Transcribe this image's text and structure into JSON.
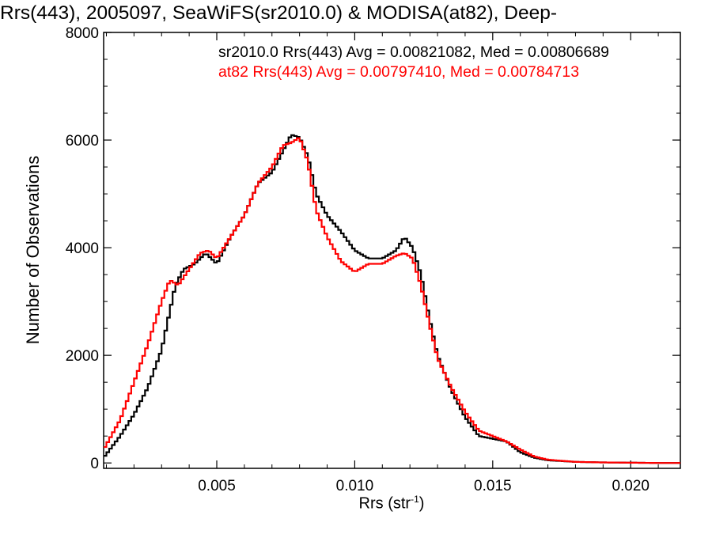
{
  "title": "Rrs(443), 2005097, SeaWiFS(sr2010.0) & MODISA(at82), Deep-",
  "chart_data": {
    "type": "line",
    "step": true,
    "xlabel_main": "Rrs (str",
    "xlabel_sup": "-1",
    "xlabel_close": ")",
    "ylabel": "Number of Observations",
    "xlim": [
      0.0009,
      0.0218
    ],
    "ylim": [
      -100,
      8000
    ],
    "xticks": [
      0.005,
      0.01,
      0.015,
      0.02
    ],
    "xtick_labels": [
      "0.005",
      "0.010",
      "0.015",
      "0.020"
    ],
    "yticks": [
      0,
      2000,
      4000,
      6000,
      8000
    ],
    "ytick_labels": [
      "0",
      "2000",
      "4000",
      "6000",
      "8000"
    ],
    "grid": false,
    "legend_position": "top-right",
    "series": [
      {
        "name": "sr2010.0 Rrs(443) Avg = 0.00821082, Med = 0.00806689",
        "color": "#000000",
        "x": [
          0.0009,
          0.0015,
          0.002,
          0.0025,
          0.003,
          0.0035,
          0.0038,
          0.0042,
          0.0046,
          0.005,
          0.0055,
          0.006,
          0.0065,
          0.007,
          0.0074,
          0.0077,
          0.008,
          0.0083,
          0.0086,
          0.009,
          0.0095,
          0.01,
          0.0105,
          0.011,
          0.0115,
          0.0118,
          0.0121,
          0.0124,
          0.0127,
          0.013,
          0.0135,
          0.014,
          0.0145,
          0.015,
          0.0155,
          0.016,
          0.0165,
          0.017,
          0.018,
          0.019,
          0.02,
          0.021,
          0.0218
        ],
        "y": [
          100,
          500,
          900,
          1400,
          2100,
          3300,
          3600,
          3700,
          3900,
          3700,
          4200,
          4600,
          5200,
          5400,
          5800,
          6100,
          6050,
          5700,
          5000,
          4600,
          4300,
          3950,
          3800,
          3800,
          3950,
          4200,
          4000,
          3500,
          2700,
          2000,
          1350,
          850,
          500,
          450,
          400,
          200,
          100,
          50,
          20,
          10,
          5,
          0,
          0
        ]
      },
      {
        "name": "at82 Rrs(443) Avg = 0.00797410, Med = 0.00784713",
        "color": "#ff0000",
        "x": [
          0.0009,
          0.0015,
          0.002,
          0.0025,
          0.003,
          0.0033,
          0.0036,
          0.004,
          0.0044,
          0.0047,
          0.005,
          0.0055,
          0.006,
          0.0065,
          0.007,
          0.0074,
          0.0077,
          0.008,
          0.0083,
          0.0086,
          0.009,
          0.0095,
          0.01,
          0.0105,
          0.011,
          0.0115,
          0.0118,
          0.0121,
          0.0124,
          0.0127,
          0.013,
          0.0135,
          0.014,
          0.0145,
          0.015,
          0.0155,
          0.016,
          0.0165,
          0.017,
          0.018,
          0.019,
          0.02,
          0.021,
          0.0218
        ],
        "y": [
          250,
          800,
          1500,
          2200,
          3000,
          3400,
          3300,
          3600,
          3900,
          3950,
          3800,
          4200,
          4600,
          5200,
          5500,
          5900,
          5950,
          6050,
          5600,
          4700,
          4200,
          3750,
          3550,
          3700,
          3700,
          3850,
          3900,
          3800,
          3300,
          2600,
          1950,
          1400,
          950,
          600,
          500,
          400,
          250,
          120,
          60,
          20,
          10,
          5,
          0,
          0
        ]
      }
    ]
  }
}
